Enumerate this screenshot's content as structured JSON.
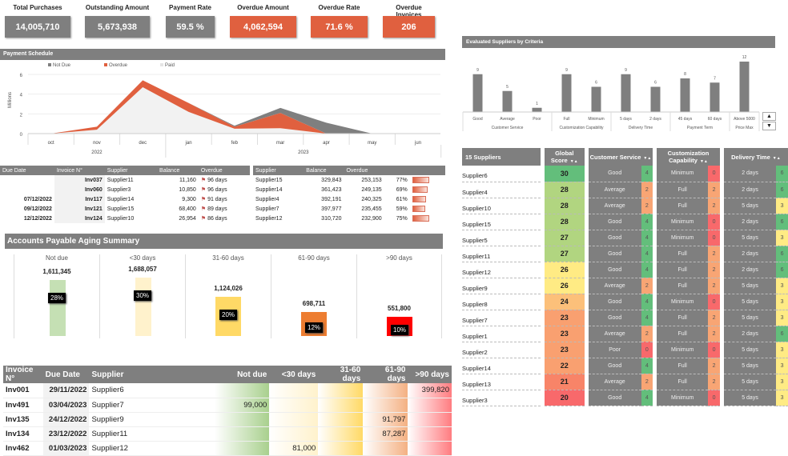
{
  "kpis": [
    {
      "title": "Total Purchases",
      "value": "14,005,710",
      "color": "#7f7f7f"
    },
    {
      "title": "Outstanding Amount",
      "value": "5,673,938",
      "color": "#7f7f7f"
    },
    {
      "title": "Payment Rate",
      "value": "59.5 %",
      "color": "#7f7f7f"
    },
    {
      "title": "Overdue Amount",
      "value": "4,062,594",
      "color": "#e0603f"
    },
    {
      "title": "Overdue Rate",
      "value": "71.6 %",
      "color": "#e0603f"
    },
    {
      "title": "Overdue Invoices",
      "value": "206",
      "color": "#e0603f"
    }
  ],
  "payment_schedule": {
    "title": "Payment Schedule",
    "chart_data": {
      "type": "area",
      "stacked": true,
      "ylabel": "Millions",
      "ylim": [
        0,
        6
      ],
      "yticks": [
        0,
        2,
        4,
        6
      ],
      "categories": [
        "oct",
        "nov",
        "dec",
        "jan",
        "feb",
        "mar",
        "apr",
        "may",
        "jun"
      ],
      "years": [
        {
          "label": "2022",
          "span": 3
        },
        {
          "label": "2023",
          "span": 6
        }
      ],
      "legend_position": "top",
      "grid": true,
      "series": [
        {
          "name": "Paid",
          "color": "#f2f2f2",
          "values": [
            0,
            0.4,
            4.7,
            2.2,
            0.5,
            0.55,
            0,
            0,
            0
          ]
        },
        {
          "name": "Overdue",
          "color": "#e0603f",
          "values": [
            0,
            0.3,
            0.7,
            0.9,
            0.2,
            1.55,
            0,
            0,
            0
          ]
        },
        {
          "name": "Not Due",
          "color": "#7f7f7f",
          "values": [
            0,
            0,
            0,
            0,
            0.1,
            0.5,
            1.1,
            0,
            0
          ]
        }
      ],
      "legend_order": [
        "Not Due",
        "Overdue",
        "Paid"
      ]
    }
  },
  "overdue_invoices": {
    "headers": [
      "Due Date",
      "Invoice N°",
      "Supplier",
      "Balance",
      "Overdue"
    ],
    "rows": [
      [
        "",
        "Inv037",
        "Supplier11",
        "11,160",
        "96 days"
      ],
      [
        "",
        "Inv060",
        "Supplier3",
        "10,850",
        "96 days"
      ],
      [
        "07/12/2022",
        "Inv117",
        "Supplier14",
        "9,300",
        "91 days"
      ],
      [
        "09/12/2022",
        "Inv121",
        "Supplier15",
        "68,400",
        "89 days"
      ],
      [
        "12/12/2022",
        "Inv124",
        "Supplier10",
        "26,954",
        "86 days"
      ]
    ]
  },
  "overdue_suppliers": {
    "headers": [
      "Supplier",
      "Balance",
      "Overdue"
    ],
    "rows": [
      [
        "Supplier15",
        "329,843",
        "253,153",
        "77%",
        77
      ],
      [
        "Supplier14",
        "361,423",
        "249,135",
        "69%",
        69
      ],
      [
        "Supplier4",
        "392,191",
        "240,325",
        "61%",
        61
      ],
      [
        "Supplier7",
        "397,977",
        "235,455",
        "59%",
        59
      ],
      [
        "Supplier12",
        "310,720",
        "232,900",
        "75%",
        75
      ]
    ]
  },
  "aging": {
    "title": "Accounts Payable Aging Summary",
    "buckets": [
      {
        "label": "Not due",
        "value": "1,611,345",
        "amount": 1611345,
        "pct": "28%",
        "color": "#c5e0b4"
      },
      {
        "label": "<30 days",
        "value": "1,688,057",
        "amount": 1688057,
        "pct": "30%",
        "color": "#fff2cc"
      },
      {
        "label": "31-60 days",
        "value": "1,124,026",
        "amount": 1124026,
        "pct": "20%",
        "color": "#ffd966"
      },
      {
        "label": "61-90 days",
        "value": "698,711",
        "amount": 698711,
        "pct": "12%",
        "color": "#ed7d31"
      },
      {
        "label": ">90 days",
        "value": "551,800",
        "amount": 551800,
        "pct": "10%",
        "color": "#ff0000"
      }
    ]
  },
  "aging_detail": {
    "headers": [
      "Invoice N°",
      "Due Date",
      "Supplier",
      "Not due",
      "<30 days",
      "31-60 days",
      "61-90 days",
      ">90 days"
    ],
    "rows": [
      [
        "Inv001",
        "29/11/2022",
        "Supplier6",
        "",
        "",
        "",
        "",
        "399,820"
      ],
      [
        "Inv491",
        "03/04/2023",
        "Supplier7",
        "99,000",
        "",
        "",
        "",
        ""
      ],
      [
        "Inv135",
        "24/12/2022",
        "Supplier9",
        "",
        "",
        "",
        "91,797",
        ""
      ],
      [
        "Inv134",
        "23/12/2022",
        "Supplier11",
        "",
        "",
        "",
        "87,287",
        ""
      ],
      [
        "Inv462",
        "01/03/2023",
        "Supplier12",
        "",
        "81,000",
        "",
        "",
        ""
      ]
    ]
  },
  "criteria_chart": {
    "title": "Evaluated Suppliers by Criteria",
    "chart_data": {
      "type": "bar",
      "color": "#7f7f7f",
      "ylim": [
        0,
        12
      ],
      "categories": [
        "Good",
        "Average",
        "Poor",
        "Full",
        "Minimum",
        "5 days",
        "2 days",
        "45 days",
        "60 days",
        "Above 5000"
      ],
      "groups": [
        {
          "label": "Customer Service",
          "span": 3
        },
        {
          "label": "Customization Capability",
          "span": 2
        },
        {
          "label": "Delivery Time",
          "span": 2
        },
        {
          "label": "Payment Term",
          "span": 2
        },
        {
          "label": "Price Max",
          "span": 1
        }
      ],
      "values": [
        9,
        5,
        1,
        9,
        6,
        9,
        6,
        8,
        7,
        12
      ]
    },
    "scroll_up": "▲",
    "scroll_down": "▼"
  },
  "suppliers": {
    "header_count": "15 Suppliers",
    "headers": [
      "Global Score",
      "Customer Service",
      "Customization Capability",
      "Delivery Time"
    ],
    "sort_icon": "▼▲",
    "rows": [
      [
        "Supplier6",
        "30",
        "Good",
        "4",
        "Minimum",
        "0",
        "2 days",
        "6"
      ],
      [
        "Supplier4",
        "28",
        "Average",
        "2",
        "Full",
        "2",
        "2 days",
        "6"
      ],
      [
        "Supplier10",
        "28",
        "Average",
        "2",
        "Full",
        "2",
        "5 days",
        "3"
      ],
      [
        "Supplier15",
        "28",
        "Good",
        "4",
        "Minimum",
        "0",
        "2 days",
        "6"
      ],
      [
        "Supplier5",
        "27",
        "Good",
        "4",
        "Minimum",
        "0",
        "5 days",
        "3"
      ],
      [
        "Supplier11",
        "27",
        "Good",
        "4",
        "Full",
        "2",
        "2 days",
        "6"
      ],
      [
        "Supplier12",
        "26",
        "Good",
        "4",
        "Full",
        "2",
        "2 days",
        "6"
      ],
      [
        "Supplier9",
        "26",
        "Average",
        "2",
        "Full",
        "2",
        "5 days",
        "3"
      ],
      [
        "Supplier8",
        "24",
        "Good",
        "4",
        "Minimum",
        "0",
        "5 days",
        "3"
      ],
      [
        "Supplier7",
        "23",
        "Good",
        "4",
        "Full",
        "2",
        "5 days",
        "3"
      ],
      [
        "Supplier1",
        "23",
        "Average",
        "2",
        "Full",
        "2",
        "2 days",
        "6"
      ],
      [
        "Supplier2",
        "23",
        "Poor",
        "0",
        "Minimum",
        "0",
        "5 days",
        "3"
      ],
      [
        "Supplier14",
        "22",
        "Good",
        "4",
        "Full",
        "2",
        "5 days",
        "3"
      ],
      [
        "Supplier13",
        "21",
        "Average",
        "2",
        "Full",
        "2",
        "5 days",
        "3"
      ],
      [
        "Supplier3",
        "20",
        "Good",
        "4",
        "Minimum",
        "0",
        "5 days",
        "3"
      ]
    ]
  }
}
